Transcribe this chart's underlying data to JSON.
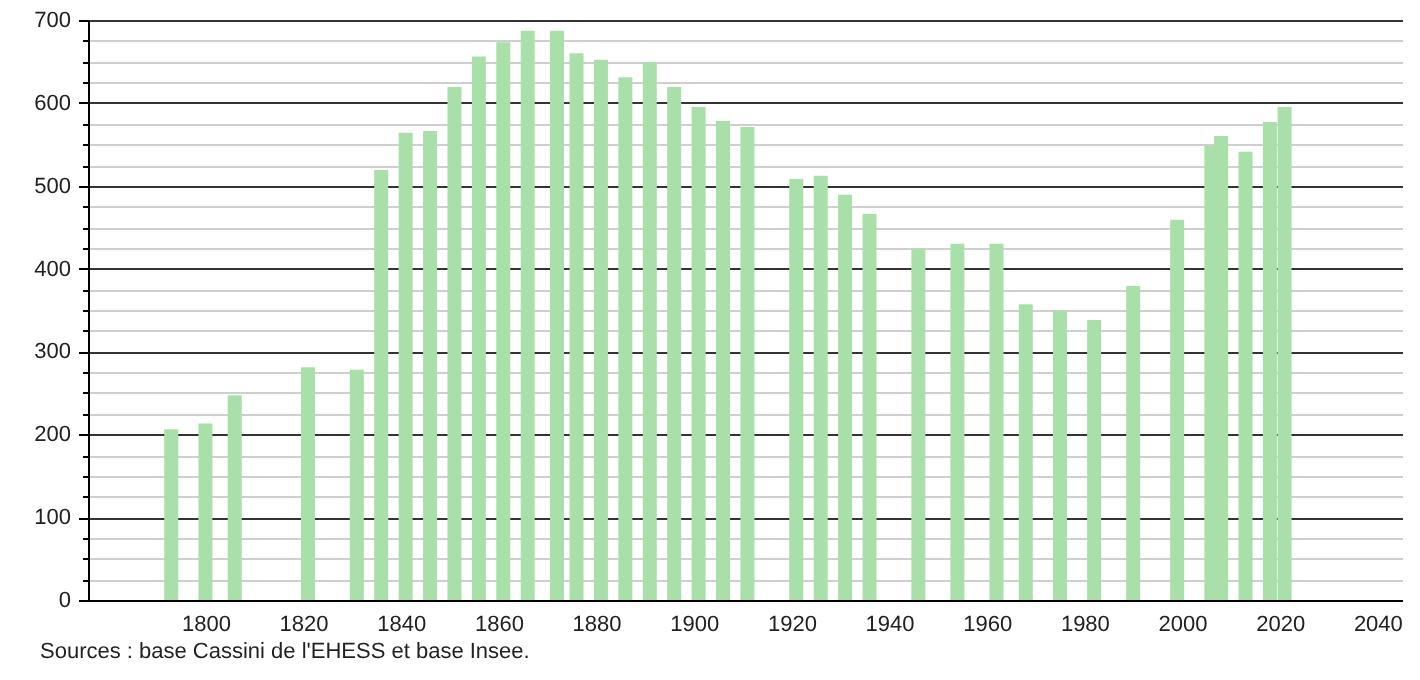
{
  "chart_data": {
    "type": "bar",
    "x": [
      1793,
      1800,
      1806,
      1821,
      1831,
      1836,
      1841,
      1846,
      1851,
      1856,
      1861,
      1866,
      1872,
      1876,
      1881,
      1886,
      1891,
      1896,
      1901,
      1906,
      1911,
      1921,
      1926,
      1931,
      1936,
      1946,
      1954,
      1962,
      1968,
      1975,
      1982,
      1990,
      1999,
      2006,
      2008,
      2013,
      2018,
      2021
    ],
    "values": [
      206,
      213,
      247,
      281,
      278,
      519,
      564,
      566,
      619,
      656,
      673,
      687,
      687,
      660,
      652,
      631,
      649,
      619,
      595,
      578,
      571,
      508,
      512,
      489,
      466,
      424,
      430,
      430,
      357,
      349,
      338,
      379,
      459,
      548,
      560,
      541,
      577,
      595
    ],
    "color": "#a9e0a9",
    "xlim": [
      1778,
      2043
    ],
    "xticks": [
      1800,
      1820,
      1840,
      1860,
      1880,
      1900,
      1920,
      1940,
      1960,
      1980,
      2000,
      2020,
      2040
    ],
    "ylim": [
      0,
      700
    ],
    "yticks": [
      0,
      {
        "value": 25,
        "label": null
      },
      {
        "value": 50,
        "label": null
      },
      {
        "value": 75,
        "label": null
      },
      100,
      {
        "value": 125,
        "label": null
      },
      {
        "value": 150,
        "label": null
      },
      {
        "value": 175,
        "label": null
      },
      200,
      {
        "value": 225,
        "label": null
      },
      {
        "value": 250,
        "label": null
      },
      {
        "value": 275,
        "label": null
      },
      300,
      {
        "value": 325,
        "label": null
      },
      {
        "value": 350,
        "label": null
      },
      {
        "value": 375,
        "label": null
      },
      400,
      {
        "value": 425,
        "label": null
      },
      {
        "value": 450,
        "label": null
      },
      {
        "value": 475,
        "label": null
      },
      500,
      {
        "value": 525,
        "label": null
      },
      {
        "value": 550,
        "label": null
      },
      {
        "value": 575,
        "label": null
      },
      600,
      {
        "value": 625,
        "label": null
      },
      {
        "value": 650,
        "label": null
      },
      {
        "value": 675,
        "label": null
      },
      700
    ],
    "grid": "y",
    "annotations": [
      "Sources : base Cassini de l'EHESS et base Insee."
    ]
  }
}
